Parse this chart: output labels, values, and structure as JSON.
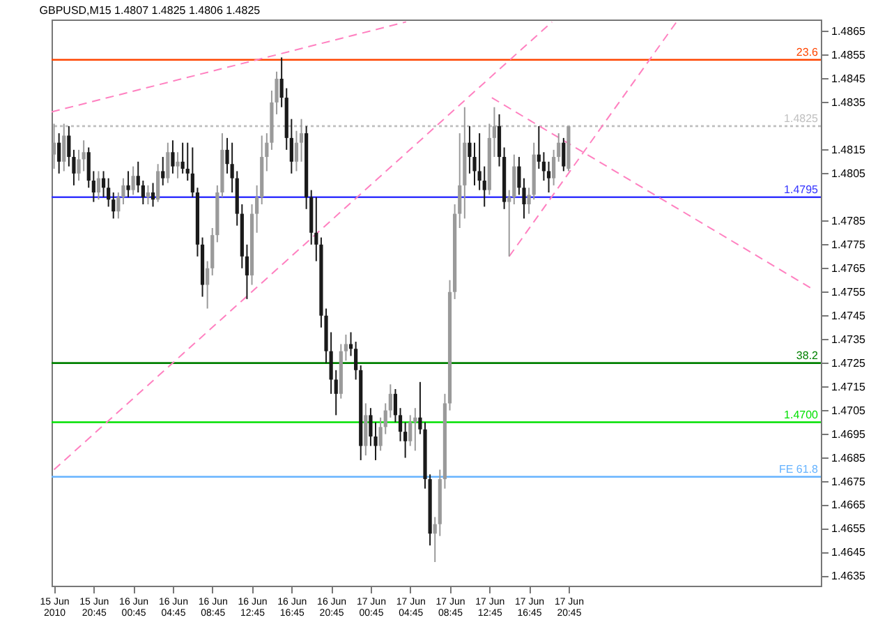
{
  "chart_data": {
    "type": "candlestick",
    "title": "GBPUSD,M15 1.4807 1.4825 1.4806 1.4825",
    "x": [
      "2010-06-15T16:45",
      "2010-06-15T17:15",
      "2010-06-15T17:45",
      "2010-06-15T18:15",
      "2010-06-15T18:45",
      "2010-06-15T19:15",
      "2010-06-15T19:45",
      "2010-06-15T20:15",
      "2010-06-15T20:45",
      "2010-06-15T21:15",
      "2010-06-15T21:45",
      "2010-06-15T22:15",
      "2010-06-15T22:45",
      "2010-06-15T23:15",
      "2010-06-15T23:45",
      "2010-06-16T00:15",
      "2010-06-16T00:45",
      "2010-06-16T01:15",
      "2010-06-16T01:45",
      "2010-06-16T02:15",
      "2010-06-16T02:45",
      "2010-06-16T03:15",
      "2010-06-16T03:45",
      "2010-06-16T04:15",
      "2010-06-16T04:45",
      "2010-06-16T05:15",
      "2010-06-16T05:45",
      "2010-06-16T06:15",
      "2010-06-16T06:45",
      "2010-06-16T07:15",
      "2010-06-16T07:45",
      "2010-06-16T08:15",
      "2010-06-16T08:45",
      "2010-06-16T09:15",
      "2010-06-16T09:45",
      "2010-06-16T10:15",
      "2010-06-16T10:45",
      "2010-06-16T11:15",
      "2010-06-16T11:45",
      "2010-06-16T12:15",
      "2010-06-16T12:45",
      "2010-06-16T13:15",
      "2010-06-16T13:45",
      "2010-06-16T14:15",
      "2010-06-16T14:45",
      "2010-06-16T15:15",
      "2010-06-16T15:45",
      "2010-06-16T16:15",
      "2010-06-16T16:45",
      "2010-06-16T17:15",
      "2010-06-16T17:45",
      "2010-06-16T18:15",
      "2010-06-16T18:45",
      "2010-06-16T19:15",
      "2010-06-16T19:45",
      "2010-06-16T20:15",
      "2010-06-16T20:45",
      "2010-06-16T21:15",
      "2010-06-16T21:45",
      "2010-06-16T22:15",
      "2010-06-16T22:45",
      "2010-06-16T23:15",
      "2010-06-16T23:45",
      "2010-06-17T00:15",
      "2010-06-17T00:45",
      "2010-06-17T01:15",
      "2010-06-17T01:45",
      "2010-06-17T02:15",
      "2010-06-17T02:45",
      "2010-06-17T03:15",
      "2010-06-17T03:45",
      "2010-06-17T04:15",
      "2010-06-17T04:45",
      "2010-06-17T05:15",
      "2010-06-17T05:45",
      "2010-06-17T06:15",
      "2010-06-17T06:45",
      "2010-06-17T07:15",
      "2010-06-17T07:45",
      "2010-06-17T08:15",
      "2010-06-17T08:45",
      "2010-06-17T09:15",
      "2010-06-17T09:45",
      "2010-06-17T10:15",
      "2010-06-17T10:45",
      "2010-06-17T11:15",
      "2010-06-17T11:45",
      "2010-06-17T12:15",
      "2010-06-17T12:45",
      "2010-06-17T13:15",
      "2010-06-17T13:45",
      "2010-06-17T14:15",
      "2010-06-17T14:45",
      "2010-06-17T15:15",
      "2010-06-17T15:45",
      "2010-06-17T16:15",
      "2010-06-17T16:45",
      "2010-06-17T17:15",
      "2010-06-17T17:45",
      "2010-06-17T18:15",
      "2010-06-17T18:45",
      "2010-06-17T19:15",
      "2010-06-17T19:45",
      "2010-06-17T20:15",
      "2010-06-17T20:45"
    ],
    "ohlc": [
      [
        1.4813,
        1.4826,
        1.4807,
        1.4818
      ],
      [
        1.4818,
        1.4822,
        1.4805,
        1.481
      ],
      [
        1.481,
        1.4826,
        1.4806,
        1.4821
      ],
      [
        1.4821,
        1.4825,
        1.4808,
        1.4812
      ],
      [
        1.4812,
        1.4815,
        1.48,
        1.4805
      ],
      [
        1.4805,
        1.4815,
        1.4802,
        1.4811
      ],
      [
        1.4811,
        1.4819,
        1.4806,
        1.4814
      ],
      [
        1.4814,
        1.4816,
        1.4799,
        1.4802
      ],
      [
        1.4802,
        1.4806,
        1.4793,
        1.4797
      ],
      [
        1.4797,
        1.4806,
        1.4794,
        1.4803
      ],
      [
        1.4803,
        1.4806,
        1.4795,
        1.4799
      ],
      [
        1.4799,
        1.4803,
        1.4791,
        1.4794
      ],
      [
        1.4794,
        1.4797,
        1.4786,
        1.4789
      ],
      [
        1.4789,
        1.4797,
        1.4786,
        1.4795
      ],
      [
        1.4795,
        1.4803,
        1.4792,
        1.48
      ],
      [
        1.48,
        1.4806,
        1.4795,
        1.4798
      ],
      [
        1.4798,
        1.4808,
        1.4796,
        1.4804
      ],
      [
        1.4804,
        1.481,
        1.4797,
        1.48
      ],
      [
        1.48,
        1.4802,
        1.4792,
        1.4795
      ],
      [
        1.4795,
        1.48,
        1.4792,
        1.4797
      ],
      [
        1.4797,
        1.4801,
        1.4791,
        1.4794
      ],
      [
        1.4794,
        1.4809,
        1.4793,
        1.4806
      ],
      [
        1.4806,
        1.4812,
        1.48,
        1.4803
      ],
      [
        1.4803,
        1.4818,
        1.4801,
        1.4814
      ],
      [
        1.4814,
        1.4819,
        1.4805,
        1.4808
      ],
      [
        1.4808,
        1.4814,
        1.4803,
        1.481
      ],
      [
        1.481,
        1.4818,
        1.4805,
        1.4807
      ],
      [
        1.4807,
        1.4818,
        1.4802,
        1.4805
      ],
      [
        1.4805,
        1.4816,
        1.4795,
        1.4797
      ],
      [
        1.4797,
        1.4799,
        1.477,
        1.4775
      ],
      [
        1.4775,
        1.4778,
        1.4753,
        1.4758
      ],
      [
        1.4758,
        1.4768,
        1.4748,
        1.4765
      ],
      [
        1.4765,
        1.4782,
        1.4762,
        1.4779
      ],
      [
        1.4779,
        1.48,
        1.4776,
        1.4797
      ],
      [
        1.4797,
        1.4822,
        1.4795,
        1.4815
      ],
      [
        1.4815,
        1.482,
        1.4805,
        1.4809
      ],
      [
        1.4809,
        1.4818,
        1.4797,
        1.4803
      ],
      [
        1.4803,
        1.4806,
        1.4783,
        1.4788
      ],
      [
        1.4788,
        1.4792,
        1.4765,
        1.477
      ],
      [
        1.477,
        1.4775,
        1.4752,
        1.4762
      ],
      [
        1.4762,
        1.4792,
        1.4758,
        1.4788
      ],
      [
        1.4788,
        1.48,
        1.478,
        1.4795
      ],
      [
        1.4795,
        1.4821,
        1.4792,
        1.4812
      ],
      [
        1.4812,
        1.4822,
        1.4806,
        1.4818
      ],
      [
        1.4818,
        1.484,
        1.4815,
        1.4835
      ],
      [
        1.4835,
        1.4848,
        1.483,
        1.4845
      ],
      [
        1.4845,
        1.4854,
        1.4833,
        1.4837
      ],
      [
        1.4837,
        1.4841,
        1.4815,
        1.482
      ],
      [
        1.482,
        1.4828,
        1.4805,
        1.481
      ],
      [
        1.481,
        1.4823,
        1.4806,
        1.4818
      ],
      [
        1.4818,
        1.4828,
        1.481,
        1.4822
      ],
      [
        1.4822,
        1.4825,
        1.479,
        1.4795
      ],
      [
        1.4795,
        1.4798,
        1.4775,
        1.478
      ],
      [
        1.478,
        1.4795,
        1.4768,
        1.4775
      ],
      [
        1.4775,
        1.4778,
        1.474,
        1.4745
      ],
      [
        1.4745,
        1.4748,
        1.4725,
        1.473
      ],
      [
        1.473,
        1.4738,
        1.4712,
        1.4718
      ],
      [
        1.4718,
        1.4722,
        1.4703,
        1.4712
      ],
      [
        1.4712,
        1.4733,
        1.471,
        1.473
      ],
      [
        1.473,
        1.4737,
        1.4726,
        1.4733
      ],
      [
        1.4733,
        1.4738,
        1.4728,
        1.4731
      ],
      [
        1.4731,
        1.4734,
        1.4718,
        1.4722
      ],
      [
        1.4722,
        1.4724,
        1.4684,
        1.469
      ],
      [
        1.469,
        1.4708,
        1.4686,
        1.4703
      ],
      [
        1.4703,
        1.4706,
        1.469,
        1.4694
      ],
      [
        1.4694,
        1.47,
        1.4684,
        1.469
      ],
      [
        1.469,
        1.4702,
        1.4688,
        1.4698
      ],
      [
        1.4698,
        1.4708,
        1.4695,
        1.4705
      ],
      [
        1.4705,
        1.4716,
        1.4702,
        1.4712
      ],
      [
        1.4712,
        1.4714,
        1.47,
        1.4703
      ],
      [
        1.4703,
        1.4706,
        1.4692,
        1.4696
      ],
      [
        1.4696,
        1.47,
        1.4685,
        1.4692
      ],
      [
        1.4692,
        1.4703,
        1.469,
        1.47
      ],
      [
        1.47,
        1.4706,
        1.4688,
        1.4702
      ],
      [
        1.4702,
        1.4717,
        1.4695,
        1.4697
      ],
      [
        1.4697,
        1.47,
        1.4672,
        1.4676
      ],
      [
        1.4676,
        1.4678,
        1.4648,
        1.4653
      ],
      [
        1.4653,
        1.466,
        1.4641,
        1.4657
      ],
      [
        1.4657,
        1.468,
        1.4652,
        1.4676
      ],
      [
        1.4676,
        1.4712,
        1.4672,
        1.4708
      ],
      [
        1.4708,
        1.476,
        1.4705,
        1.4755
      ],
      [
        1.4755,
        1.4792,
        1.4752,
        1.4788
      ],
      [
        1.4788,
        1.4822,
        1.4782,
        1.48
      ],
      [
        1.48,
        1.4833,
        1.4786,
        1.4818
      ],
      [
        1.4818,
        1.4825,
        1.4805,
        1.4812
      ],
      [
        1.4812,
        1.4818,
        1.48,
        1.4806
      ],
      [
        1.4806,
        1.4822,
        1.4798,
        1.4802
      ],
      [
        1.4802,
        1.4808,
        1.4791,
        1.4798
      ],
      [
        1.4798,
        1.4826,
        1.4796,
        1.482
      ],
      [
        1.482,
        1.4833,
        1.4812,
        1.4825
      ],
      [
        1.4825,
        1.483,
        1.4808,
        1.4812
      ],
      [
        1.4812,
        1.4816,
        1.479,
        1.4793
      ],
      [
        1.4793,
        1.4798,
        1.477,
        1.4795
      ],
      [
        1.4795,
        1.4813,
        1.4792,
        1.4808
      ],
      [
        1.4808,
        1.4812,
        1.4796,
        1.4799
      ],
      [
        1.4799,
        1.4803,
        1.4786,
        1.4792
      ],
      [
        1.4792,
        1.4799,
        1.4788,
        1.4796
      ],
      [
        1.4796,
        1.4818,
        1.4794,
        1.4813
      ],
      [
        1.4813,
        1.4825,
        1.4807,
        1.481
      ],
      [
        1.481,
        1.4814,
        1.4802,
        1.4806
      ],
      [
        1.4806,
        1.481,
        1.4797,
        1.4803
      ],
      [
        1.4803,
        1.4815,
        1.48,
        1.4812
      ],
      [
        1.4812,
        1.4822,
        1.481,
        1.4818
      ],
      [
        1.4818,
        1.482,
        1.4806,
        1.4808
      ],
      [
        1.4807,
        1.4825,
        1.4806,
        1.4825
      ]
    ],
    "series": [
      {
        "type": "line",
        "color": "#ff80c0",
        "line_style": "dashed",
        "x": [
          "2010-06-15T16:30",
          "2010-06-17T04:20"
        ],
        "values": [
          1.4831,
          1.4869
        ]
      },
      {
        "type": "line",
        "color": "#ff80c0",
        "line_style": "dashed",
        "x": [
          "2010-06-15T16:45",
          "2010-06-17T19:05"
        ],
        "values": [
          1.468,
          1.4869
        ]
      },
      {
        "type": "line",
        "color": "#ff80c0",
        "line_style": "dashed",
        "x": [
          "2010-06-17T14:45",
          "2010-06-18T07:40"
        ],
        "values": [
          1.477,
          1.4869
        ]
      },
      {
        "type": "line",
        "color": "#ff80c0",
        "line_style": "dashed",
        "x": [
          "2010-06-17T13:00",
          "2010-06-18T21:30"
        ],
        "values": [
          1.4837,
          1.4756
        ]
      }
    ],
    "ref_lines": [
      {
        "axis": "y",
        "value": 1.4853,
        "label": null,
        "color": "#ff4500"
      },
      {
        "axis": "y",
        "value": 1.4825,
        "label": "1.4825",
        "color": "#c0c0c0",
        "line_style": "dotted"
      },
      {
        "axis": "y",
        "value": 1.4795,
        "label": "1.4795",
        "color": "#3333ff"
      },
      {
        "axis": "y",
        "value": 1.4725,
        "label": null,
        "color": "#008000"
      },
      {
        "axis": "y",
        "value": 1.47,
        "label": "1.4700",
        "color": "#00e000"
      },
      {
        "axis": "y",
        "value": 1.4677,
        "label": null,
        "color": "#66b3ff"
      }
    ],
    "annotations": [
      {
        "text": "23.6",
        "y": 1.4853
      },
      {
        "text": "38.2",
        "y": 1.4725
      },
      {
        "text": "FE 61.8",
        "y": 1.4677
      }
    ],
    "xlim": [
      "2010-06-15T16:30",
      "2010-06-18T22:15"
    ],
    "xticks": [
      {
        "value": "2010-06-15T16:45",
        "label": "15 Jun 2010"
      },
      {
        "value": "2010-06-15T20:45",
        "label": "15 Jun 20:45"
      },
      {
        "value": "2010-06-16T00:45",
        "label": "16 Jun 00:45"
      },
      {
        "value": "2010-06-16T04:45",
        "label": "16 Jun 04:45"
      },
      {
        "value": "2010-06-16T08:45",
        "label": "16 Jun 08:45"
      },
      {
        "value": "2010-06-16T12:45",
        "label": "16 Jun 12:45"
      },
      {
        "value": "2010-06-16T16:45",
        "label": "16 Jun 16:45"
      },
      {
        "value": "2010-06-16T20:45",
        "label": "16 Jun 20:45"
      },
      {
        "value": "2010-06-17T00:45",
        "label": "17 Jun 00:45"
      },
      {
        "value": "2010-06-17T04:45",
        "label": "17 Jun 04:45"
      },
      {
        "value": "2010-06-17T08:45",
        "label": "17 Jun 08:45"
      },
      {
        "value": "2010-06-17T12:45",
        "label": "17 Jun 12:45"
      },
      {
        "value": "2010-06-17T16:45",
        "label": "17 Jun 16:45"
      },
      {
        "value": "2010-06-17T20:45",
        "label": "17 Jun 20:45"
      }
    ],
    "ylim": [
      1.4631,
      1.487
    ],
    "yticks": [
      1.4865,
      1.4855,
      1.4845,
      1.4835,
      1.4815,
      1.4805,
      1.4785,
      1.4775,
      1.4765,
      1.4755,
      1.4745,
      1.4735,
      1.4725,
      1.4715,
      1.4705,
      1.4695,
      1.4685,
      1.4675,
      1.4665,
      1.4655,
      1.4645,
      1.4635
    ],
    "grid": false
  }
}
